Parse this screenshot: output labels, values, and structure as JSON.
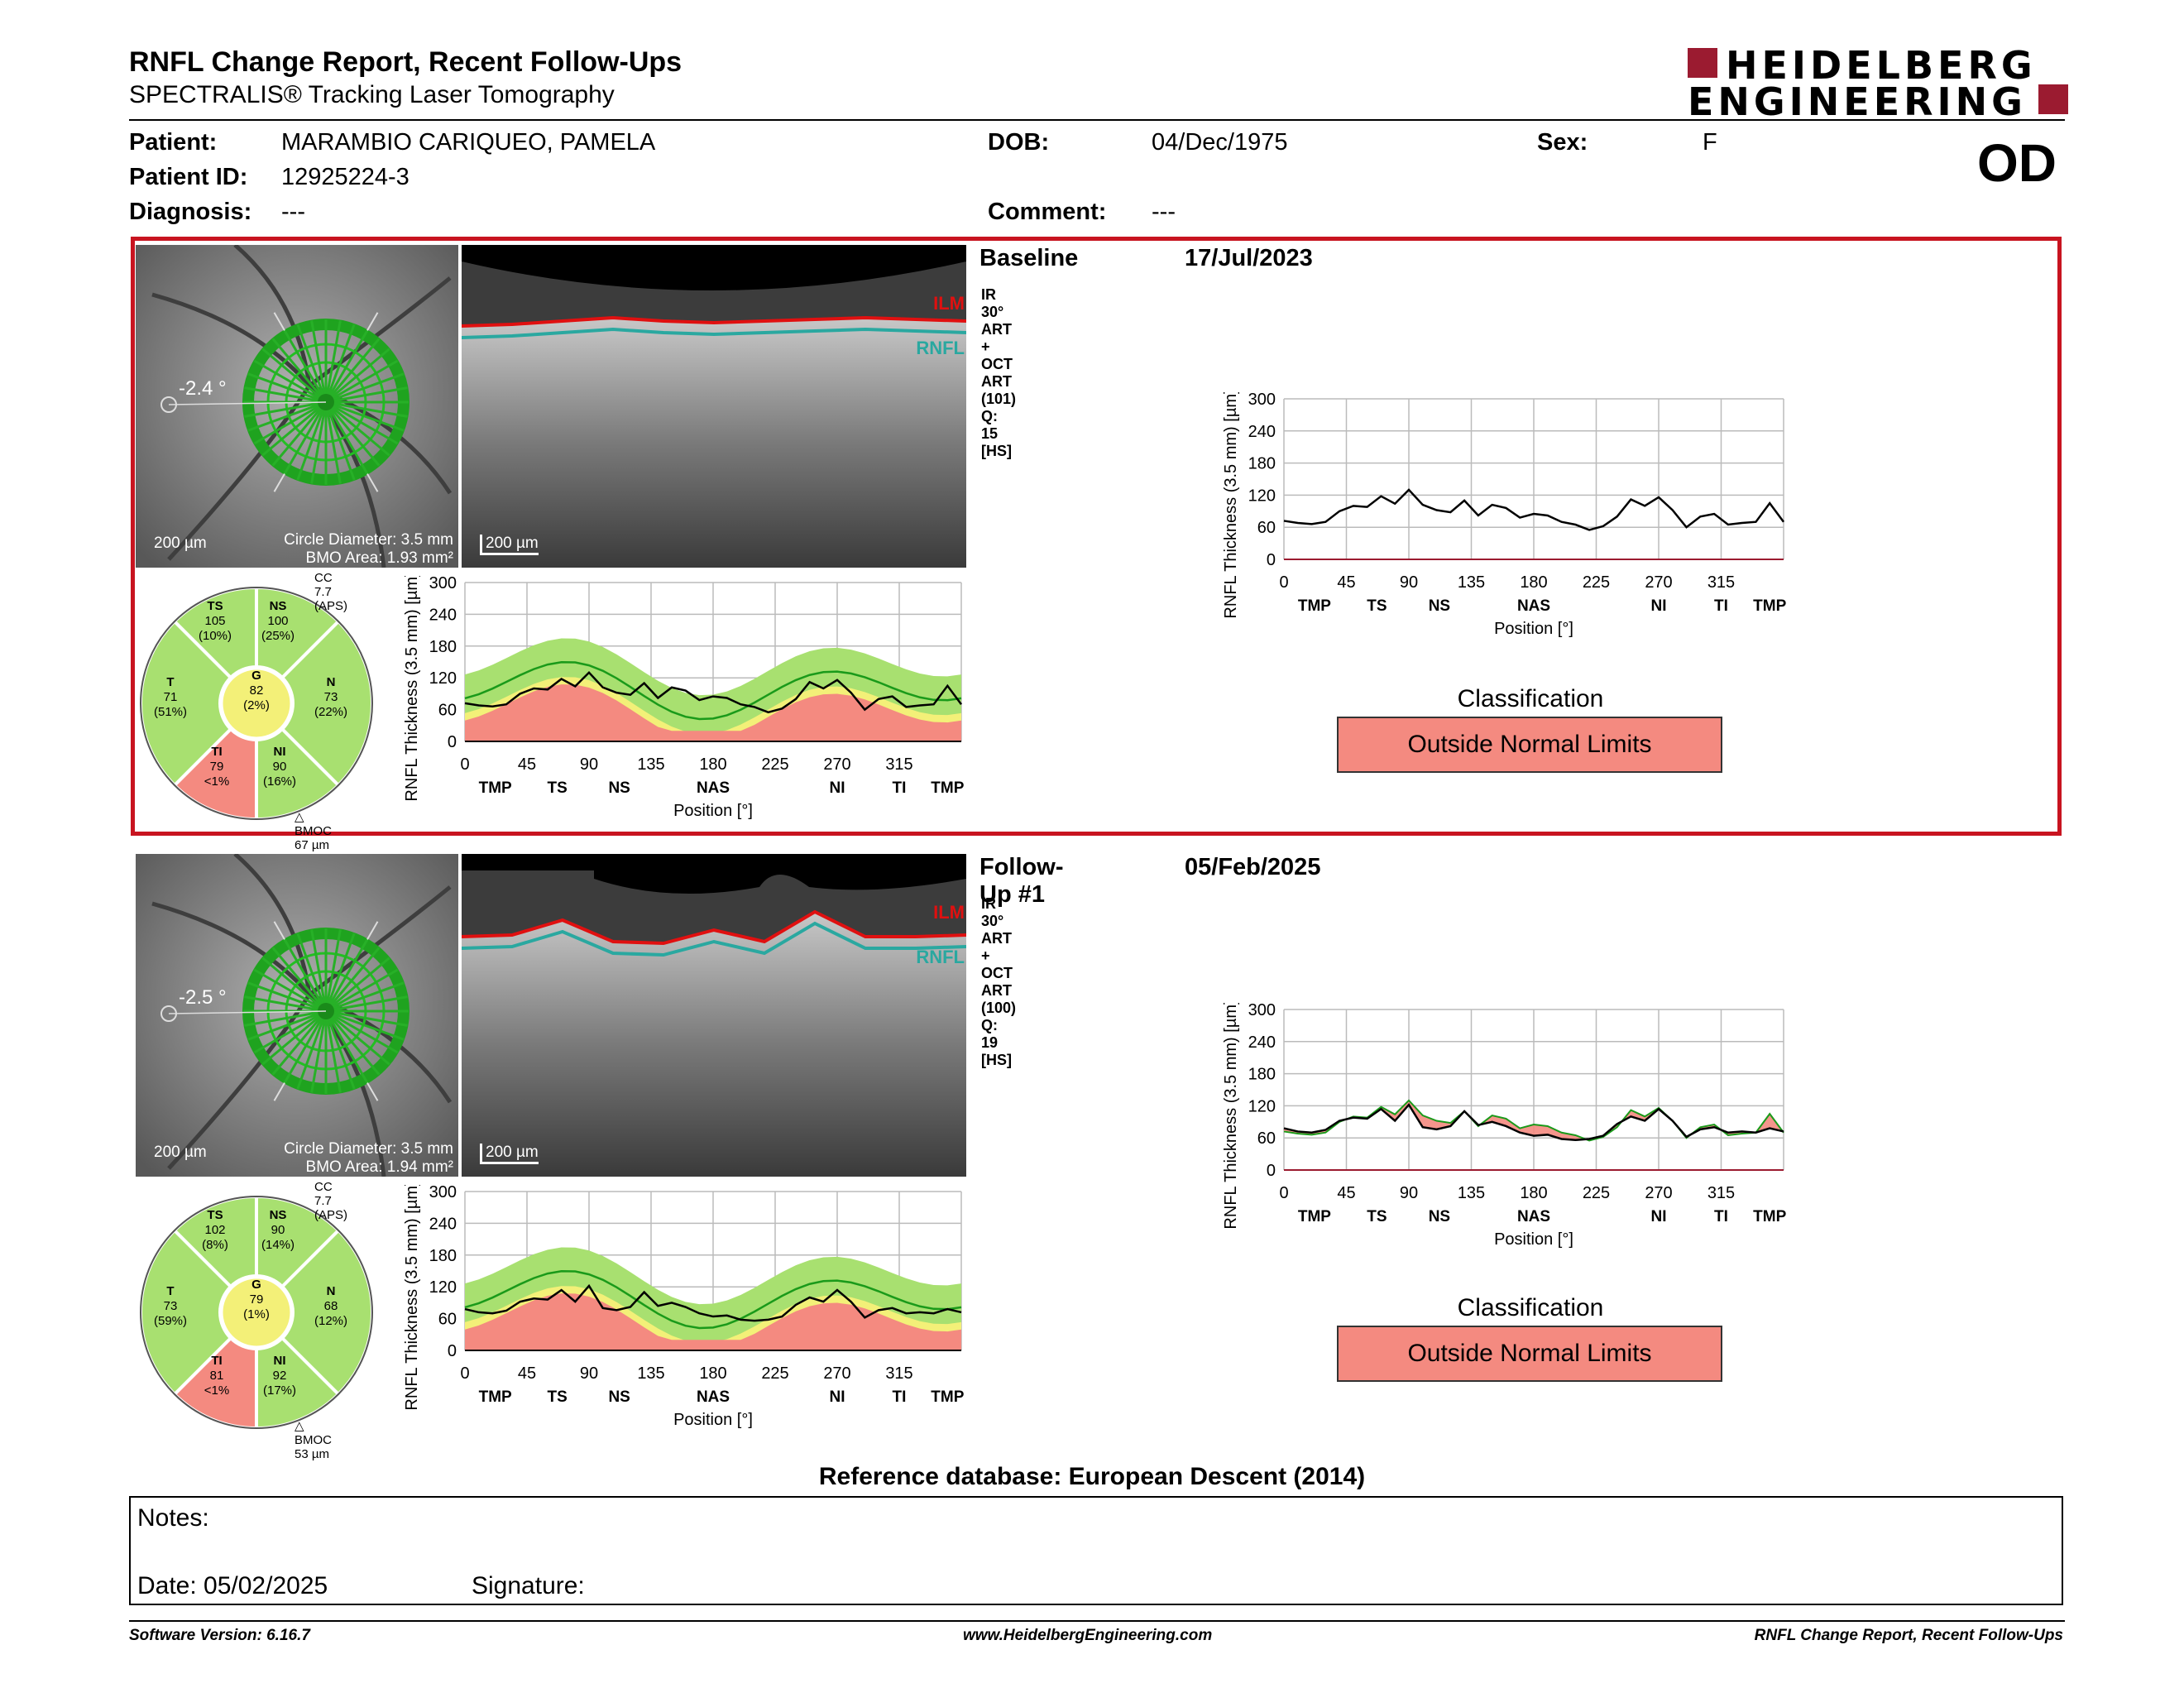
{
  "header": {
    "title": "RNFL Change Report, Recent Follow-Ups",
    "subtitle": "SPECTRALIS® Tracking Laser Tomography",
    "logo_line1": "HEIDELBERG",
    "logo_line2": "ENGINEERING",
    "eye": "OD"
  },
  "patient": {
    "patient_label": "Patient:",
    "patient_name": "MARAMBIO CARIQUEO, PAMELA",
    "id_label": "Patient ID:",
    "id_value": "12925224-3",
    "diagnosis_label": "Diagnosis:",
    "diagnosis_value": "---",
    "dob_label": "DOB:",
    "dob_value": "04/Dec/1975",
    "comment_label": "Comment:",
    "comment_value": "---",
    "sex_label": "Sex:",
    "sex_value": "F"
  },
  "exams": [
    {
      "label": "Baseline",
      "date": "17/Jul/2023",
      "scan_info": "IR 30° ART + OCT ART (101) Q: 15 [HS]",
      "angle": "-2.4 °",
      "scale_fundus": "200 µm",
      "circle_diameter": "Circle Diameter: 3.5 mm",
      "bmo_area": "BMO Area: 1.93 mm²",
      "scale_oct": "200 µm",
      "ilm": "ILM",
      "rnfl": "RNFL",
      "cc": "CC 7.7 (APS)",
      "bmoc": "BMOC 67 µm",
      "sectors": {
        "TS": {
          "name": "TS",
          "value": "105",
          "pct": "(10%)"
        },
        "NS": {
          "name": "NS",
          "value": "100",
          "pct": "(25%)"
        },
        "T": {
          "name": "T",
          "value": "71",
          "pct": "(51%)"
        },
        "G": {
          "name": "G",
          "value": "82",
          "pct": "(2%)"
        },
        "N": {
          "name": "N",
          "value": "73",
          "pct": "(22%)"
        },
        "TI": {
          "name": "TI",
          "value": "79",
          "pct": "<1%"
        },
        "NI": {
          "name": "NI",
          "value": "90",
          "pct": "(16%)"
        }
      },
      "classification_label": "Classification",
      "classification": "Outside Normal Limits"
    },
    {
      "label": "Follow-Up #1",
      "date": "05/Feb/2025",
      "scan_info": "IR 30° ART + OCT ART (100) Q: 19 [HS]",
      "angle": "-2.5 °",
      "scale_fundus": "200 µm",
      "circle_diameter": "Circle Diameter: 3.5 mm",
      "bmo_area": "BMO Area: 1.94 mm²",
      "scale_oct": "200 µm",
      "ilm": "ILM",
      "rnfl": "RNFL",
      "cc": "CC 7.7 (APS)",
      "bmoc": "BMOC 53 µm",
      "sectors": {
        "TS": {
          "name": "TS",
          "value": "102",
          "pct": "(8%)"
        },
        "NS": {
          "name": "NS",
          "value": "90",
          "pct": "(14%)"
        },
        "T": {
          "name": "T",
          "value": "73",
          "pct": "(59%)"
        },
        "G": {
          "name": "G",
          "value": "79",
          "pct": "(1%)"
        },
        "N": {
          "name": "N",
          "value": "68",
          "pct": "(12%)"
        },
        "TI": {
          "name": "TI",
          "value": "81",
          "pct": "<1%"
        },
        "NI": {
          "name": "NI",
          "value": "92",
          "pct": "(17%)"
        }
      },
      "classification_label": "Classification",
      "classification": "Outside Normal Limits"
    }
  ],
  "chart_axes": {
    "ylabel": "RNFL Thickness (3.5 mm) [µm]",
    "xlabel": "Position [°]",
    "yticks": [
      "300",
      "240",
      "180",
      "120",
      "60",
      "0"
    ],
    "xticks": [
      "0",
      "45",
      "90",
      "135",
      "180",
      "225",
      "270",
      "315"
    ],
    "sectors": [
      "TMP",
      "TS",
      "NS",
      "NAS",
      "NI",
      "TI",
      "TMP"
    ]
  },
  "chart_data": [
    {
      "type": "line",
      "title": "",
      "xlabel": "Position [°]",
      "ylabel": "RNFL Thickness (3.5 mm) [µm]",
      "xlim": [
        0,
        360
      ],
      "ylim": [
        0,
        300
      ],
      "series": [
        {
          "name": "",
          "x": [
            0,
            10,
            20,
            30,
            40,
            50,
            60,
            70,
            80,
            90,
            100,
            110,
            120,
            130,
            140,
            150,
            160,
            170,
            180,
            190,
            200,
            210,
            220,
            230,
            240,
            250,
            260,
            270,
            280,
            290,
            300,
            310,
            320,
            330,
            340,
            350,
            360
          ],
          "values": [
            72,
            68,
            66,
            70,
            90,
            100,
            98,
            118,
            104,
            130,
            102,
            92,
            88,
            110,
            82,
            102,
            96,
            78,
            85,
            82,
            70,
            65,
            55,
            62,
            80,
            112,
            100,
            116,
            92,
            60,
            80,
            85,
            65,
            68,
            70,
            105,
            70
          ]
        }
      ]
    },
    {
      "type": "line",
      "title": "",
      "xlabel": "Position [°]",
      "ylabel": "RNFL Thickness (3.5 mm) [µm]",
      "xlim": [
        0,
        360
      ],
      "ylim": [
        0,
        300
      ],
      "series": [
        {
          "name": "",
          "x": [
            0,
            10,
            20,
            30,
            40,
            50,
            60,
            70,
            80,
            90,
            100,
            110,
            120,
            130,
            140,
            150,
            160,
            170,
            180,
            190,
            200,
            210,
            220,
            230,
            240,
            250,
            260,
            270,
            280,
            290,
            300,
            310,
            320,
            330,
            340,
            350,
            360
          ],
          "values": [
            78,
            72,
            70,
            75,
            92,
            98,
            96,
            114,
            92,
            122,
            80,
            76,
            82,
            110,
            84,
            90,
            82,
            70,
            64,
            66,
            58,
            56,
            58,
            64,
            86,
            100,
            92,
            114,
            92,
            62,
            76,
            80,
            70,
            72,
            70,
            78,
            72
          ]
        }
      ]
    }
  ],
  "reference_db": "Reference database: European Descent (2014)",
  "notes": {
    "notes_label": "Notes:",
    "date_label": "Date: 05/02/2025",
    "signature_label": "Signature:"
  },
  "footer": {
    "left": "Software Version: 6.16.7",
    "center": "www.HeidelbergEngineering.com",
    "right": "RNFL Change Report, Recent Follow-Ups"
  },
  "colors": {
    "brand": "#9b1b30",
    "outside_limits": "#f48a80",
    "normal": "#a8e070",
    "borderline": "#f3f078",
    "frame": "#c81420"
  }
}
